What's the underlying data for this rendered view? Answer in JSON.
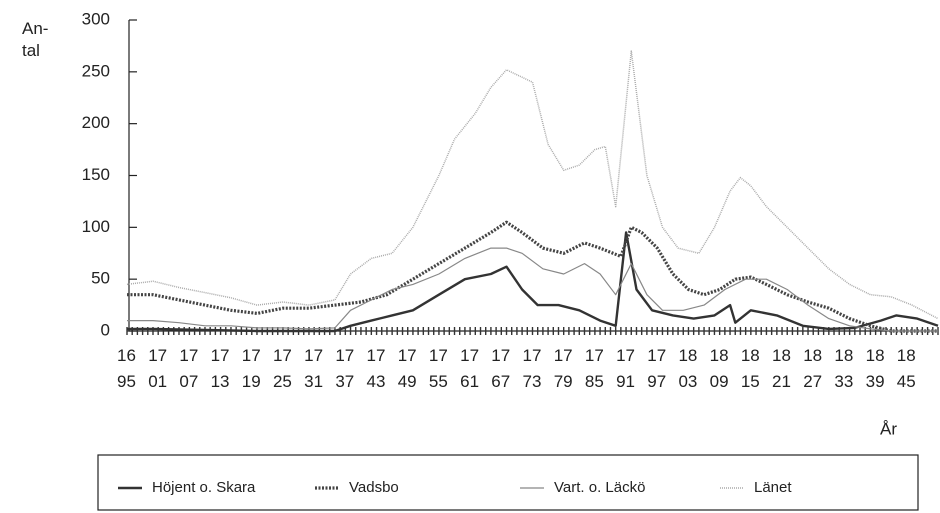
{
  "chart_data": {
    "type": "line",
    "ylabel": "An-tal",
    "xlabel": "År",
    "xlim": [
      1695,
      1851
    ],
    "ylim": [
      0,
      300
    ],
    "yticks": [
      0,
      50,
      100,
      150,
      200,
      250,
      300
    ],
    "xticks": [
      1695,
      1701,
      1707,
      1713,
      1719,
      1725,
      1731,
      1737,
      1743,
      1749,
      1755,
      1761,
      1767,
      1773,
      1779,
      1785,
      1791,
      1797,
      1803,
      1809,
      1815,
      1821,
      1827,
      1833,
      1839,
      1845
    ],
    "series": [
      {
        "name": "Höjent o. Skara",
        "color": "#333333",
        "x": [
          1695,
          1700,
          1710,
          1720,
          1730,
          1735,
          1738,
          1742,
          1746,
          1750,
          1755,
          1760,
          1765,
          1768,
          1771,
          1774,
          1778,
          1782,
          1786,
          1789,
          1791,
          1793,
          1796,
          1800,
          1804,
          1808,
          1811,
          1812,
          1815,
          1820,
          1825,
          1830,
          1835,
          1840,
          1843,
          1847,
          1851
        ],
        "values": [
          2,
          2,
          1,
          0,
          0,
          0,
          5,
          10,
          15,
          20,
          35,
          50,
          55,
          62,
          40,
          25,
          25,
          20,
          10,
          5,
          95,
          40,
          20,
          15,
          12,
          15,
          25,
          8,
          20,
          15,
          5,
          2,
          3,
          10,
          15,
          12,
          5
        ]
      },
      {
        "name": "Vadsbo",
        "color": "#444444",
        "x": [
          1695,
          1700,
          1705,
          1710,
          1715,
          1720,
          1725,
          1730,
          1735,
          1740,
          1745,
          1750,
          1755,
          1760,
          1765,
          1768,
          1771,
          1775,
          1779,
          1783,
          1786,
          1790,
          1792,
          1794,
          1797,
          1800,
          1803,
          1806,
          1809,
          1812,
          1815,
          1818,
          1822,
          1826,
          1830,
          1834,
          1838,
          1842,
          1846,
          1851
        ],
        "values": [
          35,
          35,
          30,
          25,
          20,
          17,
          22,
          22,
          25,
          28,
          35,
          50,
          65,
          80,
          95,
          105,
          95,
          80,
          75,
          85,
          80,
          72,
          100,
          95,
          80,
          55,
          40,
          35,
          40,
          50,
          52,
          45,
          35,
          28,
          22,
          12,
          5,
          0,
          0,
          0
        ]
      },
      {
        "name": "Vart. o. Läckö",
        "color": "#888888",
        "x": [
          1695,
          1700,
          1705,
          1710,
          1715,
          1720,
          1725,
          1730,
          1735,
          1738,
          1742,
          1746,
          1750,
          1755,
          1760,
          1765,
          1768,
          1771,
          1775,
          1779,
          1783,
          1786,
          1789,
          1792,
          1795,
          1798,
          1802,
          1806,
          1810,
          1814,
          1818,
          1822,
          1826,
          1830,
          1834,
          1838,
          1842,
          1846,
          1851
        ],
        "values": [
          10,
          10,
          8,
          5,
          5,
          3,
          3,
          2,
          3,
          20,
          30,
          40,
          45,
          55,
          70,
          80,
          80,
          75,
          60,
          55,
          65,
          55,
          35,
          65,
          35,
          20,
          20,
          25,
          40,
          50,
          50,
          40,
          25,
          12,
          5,
          2,
          0,
          0,
          0
        ]
      },
      {
        "name": "Länet",
        "color": "#aaaaaa",
        "x": [
          1695,
          1700,
          1705,
          1710,
          1715,
          1720,
          1725,
          1730,
          1735,
          1738,
          1742,
          1746,
          1750,
          1755,
          1758,
          1762,
          1765,
          1768,
          1773,
          1776,
          1779,
          1782,
          1785,
          1787,
          1789,
          1792,
          1795,
          1798,
          1801,
          1805,
          1808,
          1811,
          1813,
          1815,
          1818,
          1822,
          1826,
          1830,
          1834,
          1838,
          1842,
          1846,
          1851
        ],
        "values": [
          45,
          48,
          42,
          37,
          32,
          25,
          28,
          25,
          30,
          55,
          70,
          75,
          100,
          150,
          185,
          210,
          235,
          252,
          240,
          180,
          155,
          160,
          175,
          178,
          120,
          270,
          150,
          100,
          80,
          75,
          100,
          135,
          148,
          140,
          120,
          100,
          80,
          60,
          45,
          35,
          33,
          25,
          12
        ]
      }
    ]
  }
}
